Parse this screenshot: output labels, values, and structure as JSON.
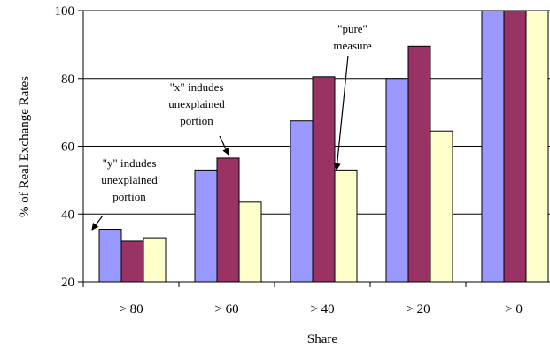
{
  "chart_data": {
    "type": "bar",
    "xlabel": "Share",
    "ylabel": "% of Real Exchange Rates",
    "ylim": [
      20,
      100
    ],
    "yticks": [
      20,
      40,
      60,
      80,
      100
    ],
    "grid": "horizontal",
    "categories": [
      "> 80",
      "> 60",
      "> 40",
      "> 20",
      "> 0"
    ],
    "series": [
      {
        "values": [
          35.5,
          53,
          67.5,
          80,
          100
        ],
        "color": "#9999ff"
      },
      {
        "values": [
          32,
          56.5,
          80.5,
          89.5,
          100
        ],
        "color": "#993366"
      },
      {
        "values": [
          33,
          43.5,
          53,
          64.5,
          100
        ],
        "color": "#ffffcc"
      }
    ],
    "annotations": [
      {
        "lines": [
          "\"y\" indudes",
          "unexplained",
          "portion"
        ],
        "category": 0,
        "series": 0
      },
      {
        "lines": [
          "\"x\" indudes",
          "unexplained",
          "portion"
        ],
        "category": 1,
        "series": 1
      },
      {
        "lines": [
          "\"pure\"",
          "measure"
        ],
        "category": 2,
        "series": 2
      }
    ]
  }
}
